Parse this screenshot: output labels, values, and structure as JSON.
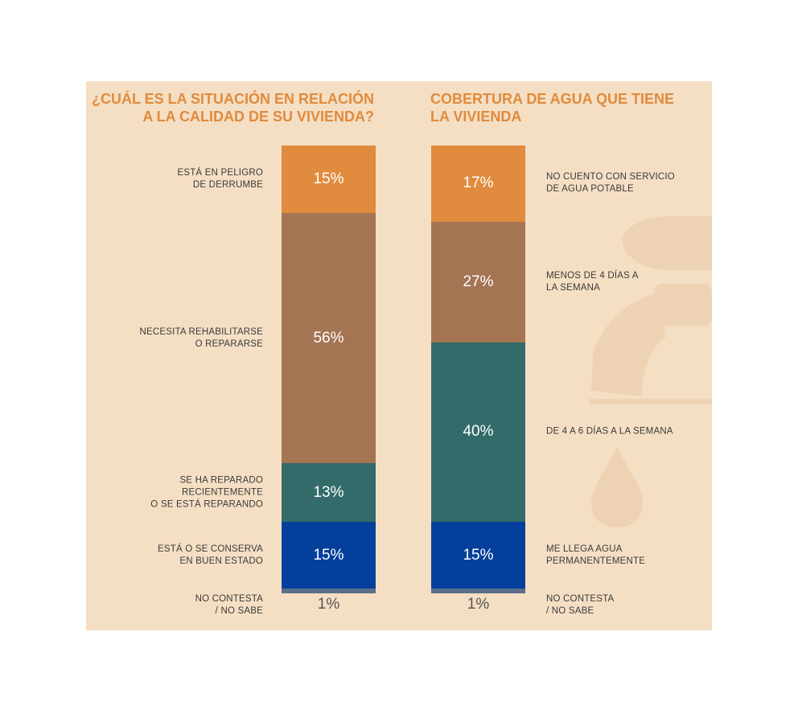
{
  "colors": {
    "background": "#f5dfc4",
    "title": "#e08b3d",
    "orange": "#e08b3d",
    "brown": "#a47453",
    "teal": "#336b6a",
    "blue": "#043f9c",
    "gray": "#5a6f8a",
    "faucet": "#eed2b4"
  },
  "chart_data": [
    {
      "type": "bar",
      "stacked": true,
      "title": "¿CUÁL ES LA SITUACIÓN EN RELACIÓN A LA CALIDAD DE SU VIVIENDA?",
      "categories": [
        "ESTÁ EN PELIGRO\nDE DERRUMBE",
        "NECESITA REHABILITARSE\nO REPARARSE",
        "SE HA REPARADO\nRECIENTEMENTE\nO SE ESTÁ REPARANDO",
        "ESTÁ O SE CONSERVA\nEN BUEN ESTADO",
        "NO CONTESTA\n/ NO SABE"
      ],
      "values": [
        15,
        56,
        13,
        15,
        1
      ],
      "labels": [
        "15%",
        "56%",
        "13%",
        "15%",
        "1%"
      ],
      "segment_colors": [
        "#e08b3d",
        "#a47453",
        "#336b6a",
        "#043f9c",
        "#5a6f8a"
      ]
    },
    {
      "type": "bar",
      "stacked": true,
      "title": "COBERTURA DE AGUA QUE TIENE LA VIVIENDA",
      "categories": [
        "NO CUENTO CON SERVICIO\nDE AGUA POTABLE",
        "MENOS DE 4 DÍAS A\nLA SEMANA",
        "DE 4 A 6 DÍAS A LA SEMANA",
        "ME LLEGA AGUA\nPERMANENTEMENTE",
        "NO CONTESTA\n/ NO SABE"
      ],
      "values": [
        17,
        27,
        40,
        15,
        1
      ],
      "labels": [
        "17%",
        "27%",
        "40%",
        "15%",
        "1%"
      ],
      "segment_colors": [
        "#e08b3d",
        "#a47453",
        "#336b6a",
        "#043f9c",
        "#5a6f8a"
      ]
    }
  ]
}
